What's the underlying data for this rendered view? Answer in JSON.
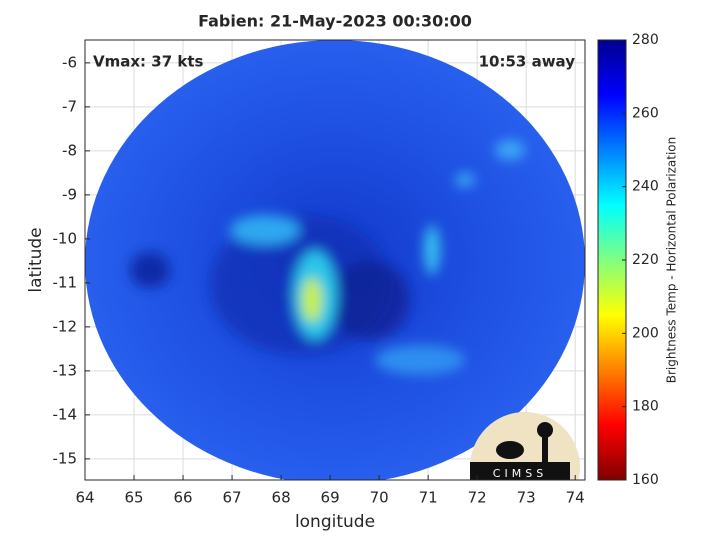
{
  "chart_data": {
    "type": "image-map",
    "title": "Fabien: 21-May-2023 00:30:00",
    "annotations": [
      "Vmax: 37 kts",
      "10:53 away"
    ],
    "xlabel": "longitude",
    "ylabel": "latitude",
    "xlim": [
      64,
      74.2
    ],
    "xticks": [
      64,
      65,
      66,
      67,
      68,
      69,
      70,
      71,
      72,
      73,
      74
    ],
    "ylim": [
      -15.48,
      -5.48
    ],
    "yticks": [
      -15,
      -14,
      -13,
      -12,
      -11,
      -10,
      -9,
      -8,
      -7,
      -6
    ],
    "grid": true,
    "colorbar": {
      "label": "Brightness Temp - Horizontal Polarization",
      "colormap": "jet",
      "lim": [
        160,
        280
      ],
      "ticks": [
        160,
        180,
        200,
        220,
        240,
        260,
        280
      ]
    },
    "logo": "CIMSS"
  }
}
